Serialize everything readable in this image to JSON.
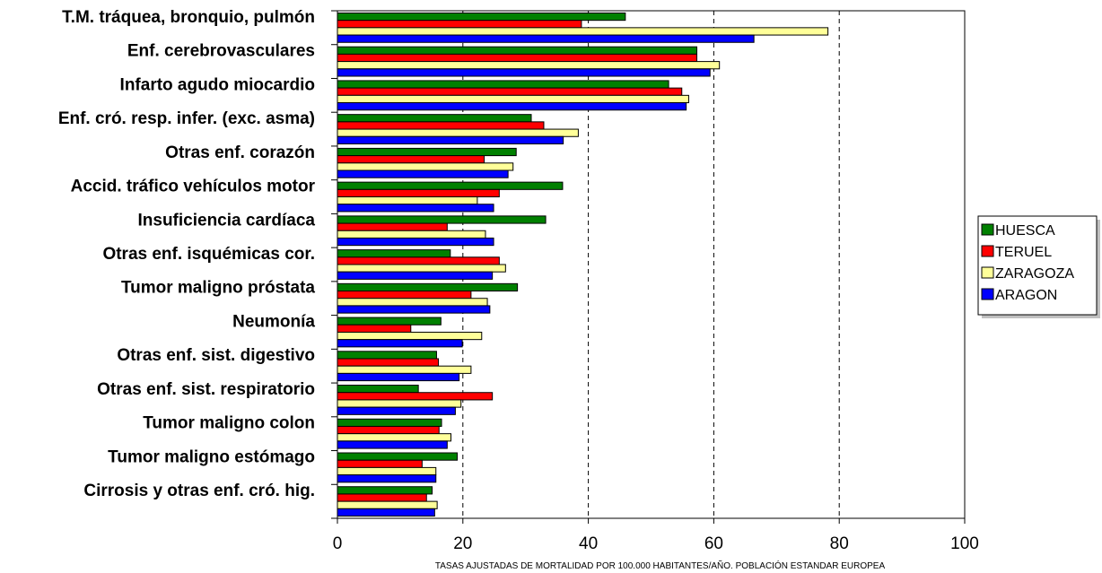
{
  "chart_data": {
    "type": "bar",
    "orientation": "horizontal",
    "categories": [
      "T.M. tráquea, bronquio,  pulmón",
      "Enf. cerebrovasculares",
      "Infarto agudo miocardio",
      "Enf. cró. resp. infer. (exc. asma)",
      "Otras enf. corazón",
      "Accid. tráfico vehículos motor",
      "Insuficiencia cardíaca",
      "Otras enf. isquémicas cor.",
      "Tumor maligno próstata",
      "Neumonía",
      "Otras enf. sist. digestivo",
      "Otras enf. sist. respiratorio",
      "Tumor maligno colon",
      "Tumor maligno estómago",
      "Cirrosis y otras enf. cró. hig."
    ],
    "series": [
      {
        "name": "HUESCA",
        "color": "#008000",
        "values": [
          45.9,
          57.3,
          52.8,
          30.9,
          28.5,
          35.9,
          33.2,
          18.0,
          28.7,
          16.5,
          15.8,
          12.9,
          16.6,
          19.1,
          15.1
        ]
      },
      {
        "name": "TERUEL",
        "color": "#ff0000",
        "values": [
          38.9,
          57.3,
          54.9,
          32.9,
          23.4,
          25.8,
          17.5,
          25.8,
          21.3,
          11.7,
          16.1,
          24.7,
          16.2,
          13.5,
          14.2
        ]
      },
      {
        "name": "ZARAGOZA",
        "color": "#ffff99",
        "values": [
          78.2,
          60.9,
          56.0,
          38.4,
          28.0,
          22.3,
          23.6,
          26.8,
          23.9,
          23.0,
          21.3,
          19.7,
          18.1,
          15.7,
          15.9
        ]
      },
      {
        "name": "ARAGON",
        "color": "#0000ff",
        "values": [
          66.4,
          59.4,
          55.6,
          36.0,
          27.2,
          24.9,
          24.9,
          24.7,
          24.3,
          19.9,
          19.4,
          18.8,
          17.5,
          15.7,
          15.5
        ]
      }
    ],
    "xlim": [
      0,
      100
    ],
    "xticks": [
      0,
      20,
      40,
      60,
      80,
      100
    ],
    "xlabel": "TASAS AJUSTADAS DE MORTALIDAD POR 100.000 HABITANTES/AÑO. POBLACIÓN ESTANDAR EUROPEA",
    "grid": "vertical dashed lines at 20, 40, 60, 80",
    "legend": "right"
  }
}
